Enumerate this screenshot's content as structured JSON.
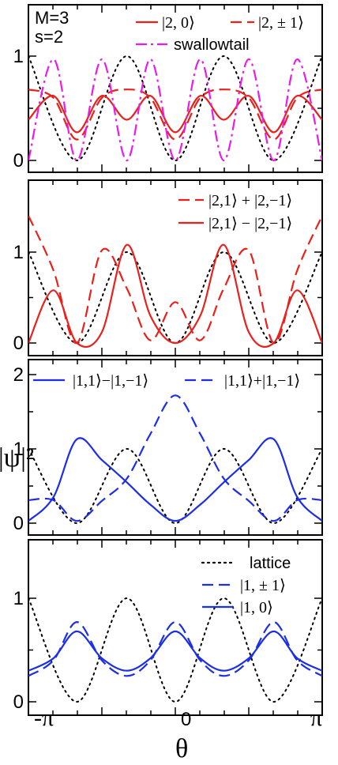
{
  "xaxis": {
    "label": "θ",
    "ticks": [
      "-π",
      "0",
      "π"
    ]
  },
  "ylabel": "|ψ|²",
  "annotations": {
    "M": "M=3",
    "s": "s=2"
  },
  "colors": {
    "red": "#e8211d",
    "magenta": "#e81ce8",
    "blue": "#1c2ee8",
    "black": "#000000"
  },
  "chart_data": [
    {
      "type": "line",
      "xlim": [
        "-π",
        "π"
      ],
      "ylim": [
        0,
        1.2
      ],
      "yticks": [
        "0",
        "1"
      ],
      "legend": [
        {
          "label": "|2, 0⟩",
          "color": "#e8211d",
          "dash": "solid"
        },
        {
          "label": "|2, ± 1⟩",
          "color": "#e8211d",
          "dash": "dashed"
        },
        {
          "label": "swallowtail",
          "color": "#e81ce8",
          "dash": "dashdot"
        }
      ],
      "series": [
        {
          "name": "|2, 0⟩",
          "x_over_pi": [
            -1,
            -0.83,
            -0.67,
            -0.5,
            -0.33,
            -0.17,
            0,
            0.17,
            0.33,
            0.5,
            0.67,
            0.83,
            1
          ],
          "y": [
            0.39,
            0.62,
            0.27,
            0.62,
            0.39,
            0.62,
            0.27,
            0.62,
            0.39,
            0.62,
            0.27,
            0.62,
            0.39
          ]
        },
        {
          "name": "|2, ± 1⟩",
          "x_over_pi": [
            -1,
            -0.83,
            -0.67,
            -0.5,
            -0.33,
            -0.17,
            0,
            0.17,
            0.33,
            0.5,
            0.67,
            0.83,
            1
          ],
          "y": [
            0.68,
            0.6,
            0.2,
            0.6,
            0.68,
            0.6,
            0.2,
            0.6,
            0.68,
            0.6,
            0.2,
            0.6,
            0.68
          ]
        },
        {
          "name": "swallowtail",
          "x_over_pi": [
            -1,
            -0.83,
            -0.67,
            -0.5,
            -0.33,
            -0.17,
            0,
            0.17,
            0.33,
            0.5,
            0.67,
            0.83,
            1
          ],
          "y": [
            0.0,
            0.97,
            0.0,
            0.97,
            0.0,
            0.97,
            0.0,
            0.97,
            0.0,
            0.97,
            0.0,
            0.97,
            0.0
          ]
        },
        {
          "name": "lattice",
          "x_over_pi": [
            -1,
            -0.67,
            -0.33,
            0,
            0.33,
            0.67,
            1
          ],
          "y": [
            1.0,
            0.0,
            1.0,
            0.0,
            1.0,
            0.0,
            1.0
          ]
        }
      ]
    },
    {
      "type": "line",
      "xlim": [
        "-π",
        "π"
      ],
      "ylim": [
        0,
        1.5
      ],
      "yticks": [
        "0",
        "1"
      ],
      "legend": [
        {
          "label": "|2,1⟩ + |2,−1⟩",
          "color": "#e8211d",
          "dash": "dashed"
        },
        {
          "label": "|2,1⟩ − |2,−1⟩",
          "color": "#e8211d",
          "dash": "solid"
        }
      ],
      "series": [
        {
          "name": "|2,1⟩ + |2,−1⟩",
          "x_over_pi": [
            -1,
            -0.83,
            -0.67,
            -0.5,
            -0.33,
            -0.17,
            0,
            0.17,
            0.33,
            0.5,
            0.67,
            0.83,
            1
          ],
          "y": [
            1.4,
            0.8,
            0.0,
            1.02,
            0.6,
            0.03,
            0.45,
            0.03,
            0.6,
            1.02,
            0.0,
            0.8,
            1.4
          ]
        },
        {
          "name": "|2,1⟩ − |2,−1⟩",
          "x_over_pi": [
            -1,
            -0.83,
            -0.67,
            -0.5,
            -0.33,
            -0.17,
            0,
            0.17,
            0.33,
            0.5,
            0.67,
            0.83,
            1
          ],
          "y": [
            0.0,
            0.58,
            0.0,
            0.12,
            1.08,
            0.3,
            0.0,
            0.3,
            1.08,
            0.12,
            0.0,
            0.58,
            0.0
          ]
        },
        {
          "name": "lattice",
          "x_over_pi": [
            -1,
            -0.67,
            -0.33,
            0,
            0.33,
            0.67,
            1
          ],
          "y": [
            1.0,
            0.0,
            1.0,
            0.0,
            1.0,
            0.0,
            1.0
          ]
        }
      ]
    },
    {
      "type": "line",
      "xlim": [
        "-π",
        "π"
      ],
      "ylim": [
        0,
        2
      ],
      "yticks": [
        "0",
        "1",
        "2"
      ],
      "legend": [
        {
          "label": "|1,1⟩−|1,−1⟩",
          "color": "#1c2ee8",
          "dash": "solid"
        },
        {
          "label": "|1,1⟩+|1,−1⟩",
          "color": "#1c2ee8",
          "dash": "dashed"
        }
      ],
      "series": [
        {
          "name": "|1,1⟩−|1,−1⟩",
          "x_over_pi": [
            -1,
            -0.83,
            -0.67,
            -0.5,
            -0.33,
            -0.17,
            0,
            0.17,
            0.33,
            0.5,
            0.67,
            0.83,
            1
          ],
          "y": [
            0.03,
            0.35,
            1.13,
            0.85,
            0.55,
            0.25,
            0.03,
            0.25,
            0.55,
            0.85,
            1.13,
            0.35,
            0.03
          ]
        },
        {
          "name": "|1,1⟩+|1,−1⟩",
          "x_over_pi": [
            -1,
            -0.83,
            -0.67,
            -0.5,
            -0.33,
            -0.17,
            0,
            0.17,
            0.33,
            0.5,
            0.67,
            0.83,
            1
          ],
          "y": [
            0.31,
            0.31,
            0.03,
            0.3,
            0.6,
            1.2,
            1.72,
            1.2,
            0.6,
            0.3,
            0.03,
            0.31,
            0.31
          ]
        },
        {
          "name": "lattice",
          "x_over_pi": [
            -1,
            -0.67,
            -0.33,
            0,
            0.33,
            0.67,
            1
          ],
          "y": [
            1.0,
            0.0,
            1.0,
            0.0,
            1.0,
            0.0,
            1.0
          ]
        }
      ]
    },
    {
      "type": "line",
      "xlim": [
        "-π",
        "π"
      ],
      "ylim": [
        0,
        1.2
      ],
      "yticks": [
        "0",
        "1"
      ],
      "legend": [
        {
          "label": "lattice",
          "color": "#000000",
          "dash": "dotted"
        },
        {
          "label": "|1, ± 1⟩",
          "color": "#1c2ee8",
          "dash": "dashed"
        },
        {
          "label": "|1, 0⟩",
          "color": "#1c2ee8",
          "dash": "solid"
        }
      ],
      "series": [
        {
          "name": "lattice",
          "x_over_pi": [
            -1,
            -0.67,
            -0.33,
            0,
            0.33,
            0.67,
            1
          ],
          "y": [
            1.0,
            0.0,
            1.0,
            0.0,
            1.0,
            0.0,
            1.0
          ]
        },
        {
          "name": "|1, ± 1⟩",
          "x_over_pi": [
            -1,
            -0.83,
            -0.67,
            -0.5,
            -0.33,
            -0.17,
            0,
            0.17,
            0.33,
            0.5,
            0.67,
            0.83,
            1
          ],
          "y": [
            0.25,
            0.4,
            0.77,
            0.4,
            0.25,
            0.4,
            0.77,
            0.4,
            0.25,
            0.4,
            0.77,
            0.4,
            0.25
          ]
        },
        {
          "name": "|1, 0⟩",
          "x_over_pi": [
            -1,
            -0.83,
            -0.67,
            -0.5,
            -0.33,
            -0.17,
            0,
            0.17,
            0.33,
            0.5,
            0.67,
            0.83,
            1
          ],
          "y": [
            0.3,
            0.42,
            0.68,
            0.42,
            0.3,
            0.42,
            0.68,
            0.42,
            0.3,
            0.42,
            0.68,
            0.42,
            0.3
          ]
        }
      ]
    }
  ]
}
